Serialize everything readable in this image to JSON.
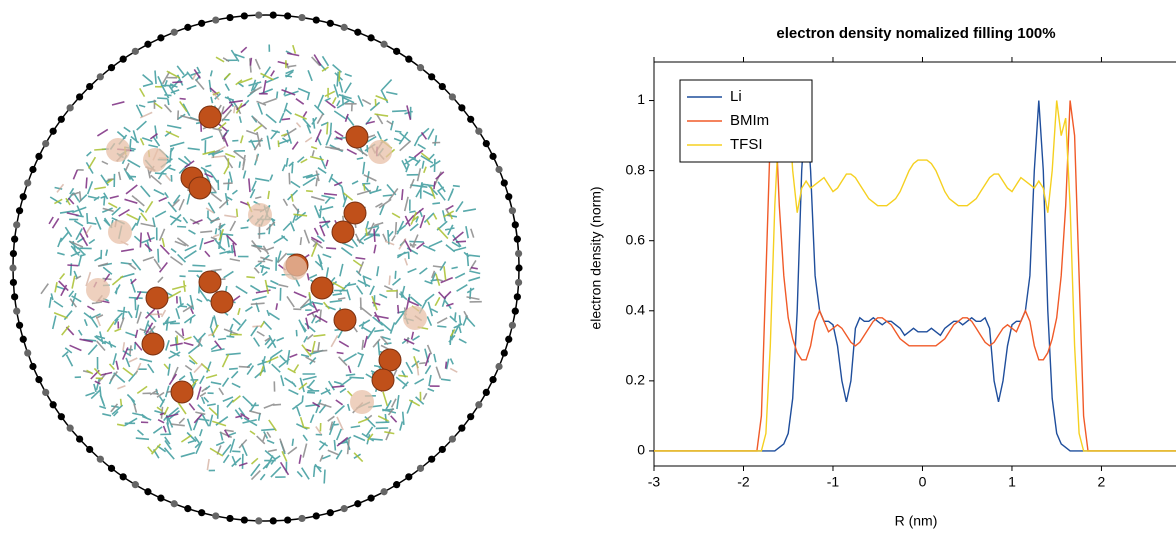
{
  "chart_data": {
    "type": "line",
    "title": "electron density nomalized filling 100%",
    "x_label": "R (nm)",
    "y_label": "electron density (norm)",
    "x": [
      -3,
      -1.85,
      -1.8,
      -1.75,
      -1.7,
      -1.65,
      -1.6,
      -1.55,
      -1.5,
      -1.45,
      -1.4,
      -1.35,
      -1.3,
      -1.25,
      -1.2,
      -1.15,
      -1.1,
      -1.05,
      -1,
      -0.95,
      -0.9,
      -0.85,
      -0.8,
      -0.75,
      -0.7,
      -0.65,
      -0.6,
      -0.55,
      -0.5,
      -0.45,
      -0.4,
      -0.35,
      -0.3,
      -0.25,
      -0.2,
      -0.15,
      -0.1,
      -0.05,
      0,
      0.05,
      0.1,
      0.15,
      0.2,
      0.25,
      0.3,
      0.35,
      0.4,
      0.45,
      0.5,
      0.55,
      0.6,
      0.65,
      0.7,
      0.75,
      0.8,
      0.85,
      0.9,
      0.95,
      1,
      1.05,
      1.1,
      1.15,
      1.2,
      1.25,
      1.3,
      1.35,
      1.4,
      1.45,
      1.5,
      1.55,
      1.6,
      1.65,
      1.7,
      1.75,
      1.8,
      1.85,
      2.9
    ],
    "series": [
      {
        "name": "Li",
        "color": "#1f4e9c",
        "values": [
          0,
          0,
          0,
          0,
          0,
          0,
          0.01,
          0.02,
          0.05,
          0.15,
          0.4,
          0.8,
          1.0,
          0.8,
          0.5,
          0.4,
          0.37,
          0.37,
          0.36,
          0.3,
          0.2,
          0.14,
          0.2,
          0.35,
          0.38,
          0.37,
          0.37,
          0.38,
          0.37,
          0.36,
          0.37,
          0.37,
          0.36,
          0.35,
          0.33,
          0.34,
          0.35,
          0.34,
          0.34,
          0.34,
          0.35,
          0.34,
          0.33,
          0.35,
          0.36,
          0.37,
          0.37,
          0.36,
          0.37,
          0.38,
          0.37,
          0.37,
          0.38,
          0.35,
          0.2,
          0.14,
          0.2,
          0.3,
          0.36,
          0.37,
          0.37,
          0.4,
          0.5,
          0.8,
          1.0,
          0.8,
          0.4,
          0.15,
          0.05,
          0.02,
          0.01,
          0,
          0,
          0,
          0,
          0,
          0
        ]
      },
      {
        "name": "BMIm",
        "color": "#f05a28",
        "values": [
          0,
          0,
          0.1,
          0.5,
          0.9,
          1.0,
          0.7,
          0.5,
          0.38,
          0.32,
          0.28,
          0.26,
          0.26,
          0.3,
          0.37,
          0.4,
          0.37,
          0.34,
          0.35,
          0.36,
          0.35,
          0.33,
          0.31,
          0.3,
          0.31,
          0.33,
          0.35,
          0.37,
          0.38,
          0.38,
          0.37,
          0.36,
          0.34,
          0.32,
          0.31,
          0.3,
          0.3,
          0.3,
          0.3,
          0.3,
          0.3,
          0.3,
          0.31,
          0.32,
          0.34,
          0.36,
          0.37,
          0.38,
          0.38,
          0.37,
          0.35,
          0.33,
          0.31,
          0.3,
          0.31,
          0.33,
          0.35,
          0.36,
          0.35,
          0.34,
          0.37,
          0.4,
          0.37,
          0.3,
          0.26,
          0.26,
          0.28,
          0.32,
          0.38,
          0.5,
          0.7,
          1.0,
          0.9,
          0.5,
          0.1,
          0,
          0
        ]
      },
      {
        "name": "TFSI",
        "color": "#f5d020",
        "values": [
          0,
          0,
          0,
          0.05,
          0.3,
          0.7,
          0.95,
          0.9,
          1.0,
          0.8,
          0.68,
          0.75,
          0.77,
          0.75,
          0.76,
          0.77,
          0.78,
          0.76,
          0.74,
          0.75,
          0.77,
          0.79,
          0.79,
          0.78,
          0.76,
          0.74,
          0.72,
          0.71,
          0.7,
          0.7,
          0.7,
          0.71,
          0.72,
          0.74,
          0.77,
          0.8,
          0.82,
          0.83,
          0.83,
          0.83,
          0.82,
          0.8,
          0.77,
          0.74,
          0.72,
          0.71,
          0.7,
          0.7,
          0.7,
          0.71,
          0.72,
          0.74,
          0.76,
          0.78,
          0.79,
          0.79,
          0.77,
          0.75,
          0.74,
          0.76,
          0.78,
          0.77,
          0.76,
          0.75,
          0.77,
          0.75,
          0.68,
          0.8,
          1.0,
          0.9,
          0.95,
          0.7,
          0.3,
          0.05,
          0,
          0,
          0
        ]
      }
    ],
    "xlim": [
      -3,
      2.9
    ],
    "xticks": [
      -3,
      -2,
      -1,
      0,
      1,
      2
    ],
    "ylim": [
      -0.043,
      1.11
    ],
    "yticks": [
      0,
      0.2,
      0.4,
      0.6,
      0.8,
      1
    ],
    "legend": "top-left"
  }
}
